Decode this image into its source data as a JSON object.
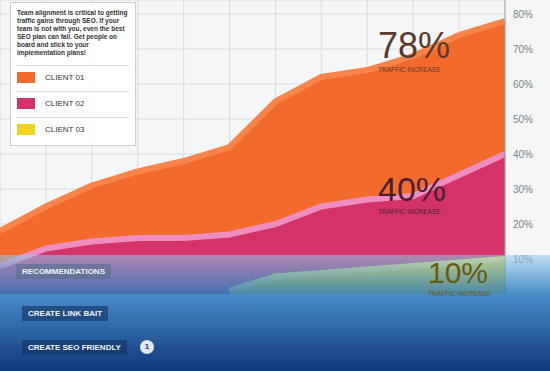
{
  "chart_data": {
    "type": "area",
    "subtitle": "Team alignment is critical to getting traffic gains through SEO. If your team is not with you, even the best SEO plan can fail. Get people on board and stick to your implementation plans!",
    "categories": [
      null,
      null,
      null,
      null,
      null,
      null,
      null,
      null,
      null,
      null,
      null,
      null
    ],
    "series": [
      {
        "name": "CLIENT 01",
        "color": "#f26b2c",
        "values": [
          18,
          25,
          31,
          35,
          38,
          42,
          55,
          62,
          64,
          68,
          74,
          78
        ]
      },
      {
        "name": "CLIENT 02",
        "color": "#d4336a",
        "values": [
          8,
          13,
          15,
          16,
          16,
          17,
          20,
          25,
          27,
          28,
          34,
          40
        ]
      },
      {
        "name": "CLIENT 03",
        "color": "#f2d31b",
        "values": [
          null,
          null,
          null,
          null,
          null,
          1,
          5,
          6,
          7,
          8,
          9,
          10
        ]
      }
    ],
    "ylim": [
      0,
      84
    ],
    "yticks": [
      {
        "value": 10,
        "label": "10%"
      },
      {
        "value": 20,
        "label": "20%"
      },
      {
        "value": 30,
        "label": "30%"
      },
      {
        "value": 40,
        "label": "40%"
      },
      {
        "value": 50,
        "label": "50%"
      },
      {
        "value": 60,
        "label": "60%"
      },
      {
        "value": 70,
        "label": "70%"
      },
      {
        "value": 80,
        "label": "80%"
      }
    ],
    "grid": true,
    "tick_labels": "y",
    "annotations": [
      {
        "label": "78%",
        "text": "TRAFFIC INCREASE"
      },
      {
        "label": "40%",
        "text": "TRAFFIC INCREASE"
      },
      {
        "label": "10%",
        "text": "TRAFFIC INCREASE"
      }
    ],
    "footer": [
      "RECOMMENDATIONS",
      "CREATE LINK BAIT",
      "CREATE SEO FRIENDLY",
      "1"
    ]
  }
}
